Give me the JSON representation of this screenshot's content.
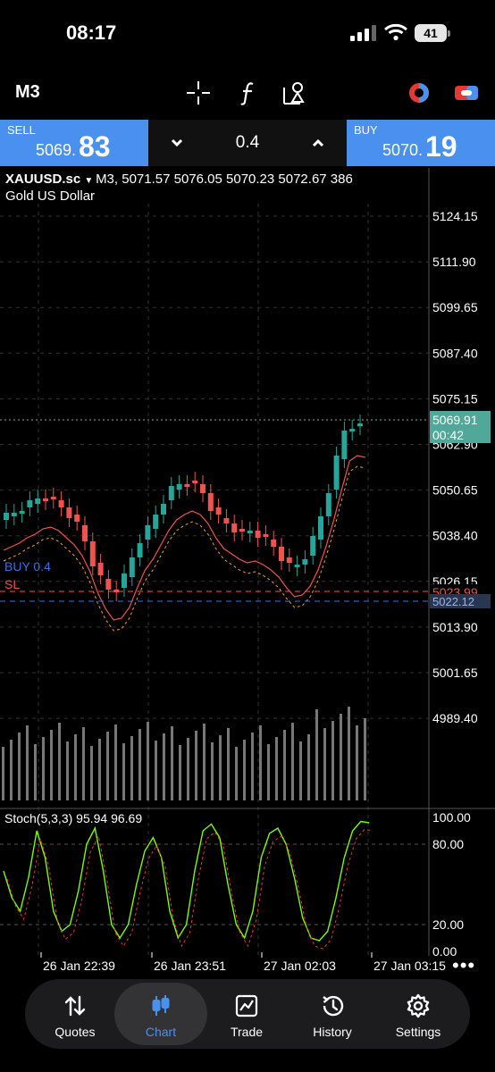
{
  "status_bar": {
    "time": "08:17",
    "battery": "41"
  },
  "toolbar": {
    "timeframe": "M3",
    "icons": [
      "crosshair-icon",
      "function-icon",
      "objects-icon",
      "chart-type-icon",
      "trade-panel-icon"
    ]
  },
  "trade_bar": {
    "sell": {
      "label": "SELL",
      "price_prefix": "5069.",
      "price_suffix": "83"
    },
    "buy": {
      "label": "BUY",
      "price_prefix": "5070.",
      "price_suffix": "19"
    },
    "volume": "0.4",
    "colors": {
      "accent": "#4a90ef"
    }
  },
  "chart": {
    "symbol": "XAUUSD.sc",
    "ohlc_line": "M3, 5071.57 5076.05 5070.23 5072.67 386",
    "description": "Gold US Dollar",
    "price_axis": [
      "5124.15",
      "5111.90",
      "5099.65",
      "5087.40",
      "5075.15",
      "5062.90",
      "5050.65",
      "5038.40",
      "5026.15",
      "5013.90",
      "5001.65",
      "4989.40"
    ],
    "current_price": "5069.91",
    "countdown": "00:42",
    "sl_label": "SL",
    "sl_price": "5023.99",
    "position_label": "BUY 0.4",
    "position_price": "5022.12",
    "stoch_label": "Stoch(5,3,3) 95.94 96.69",
    "stoch_axis": [
      "100.00",
      "80.00",
      "20.00",
      "0.00"
    ],
    "time_axis": [
      "26 Jan 22:39",
      "26 Jan 23:51",
      "27 Jan 02:03",
      "27 Jan 03:15"
    ],
    "colors": {
      "up": "#26a69a",
      "down": "#ef5350",
      "ma_fast": "#ef5350",
      "stoch_main": "#7cfc00",
      "stoch_signal": "#e53935",
      "sl": "#ef5350",
      "position": "#3d6fe0"
    }
  },
  "tabs": [
    {
      "label": "Quotes",
      "icon": "quotes-icon"
    },
    {
      "label": "Chart",
      "icon": "chart-icon",
      "active": true
    },
    {
      "label": "Trade",
      "icon": "trade-icon"
    },
    {
      "label": "History",
      "icon": "history-icon"
    },
    {
      "label": "Settings",
      "icon": "settings-icon"
    }
  ]
}
